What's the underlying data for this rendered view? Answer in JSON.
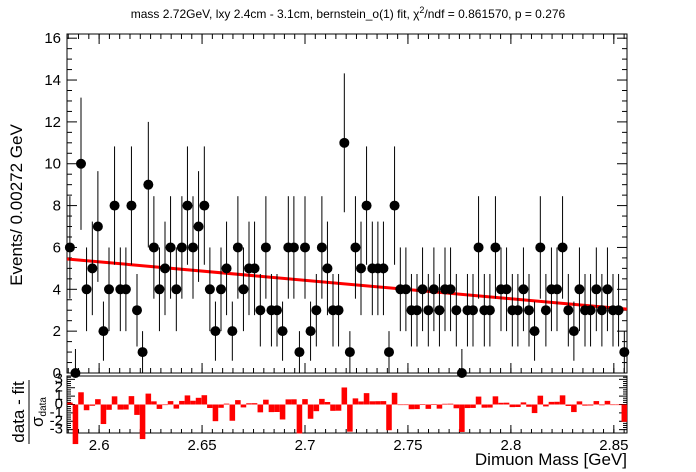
{
  "chart_data": [
    {
      "type": "scatter",
      "title": "mass 2.72GeV, lxy 2.4cm - 3.1cm, bernstein_o(1) fit, χ²/ndf = 0.861570, p = 0.276",
      "title_parts": {
        "pre": "mass 2.72GeV, lxy 2.4cm - 3.1cm, bernstein_o(1) fit, χ",
        "sup": "2",
        "post": "/ndf = 0.861570, p = 0.276"
      },
      "xlabel": "Dimuon Mass [GeV]",
      "ylabel": "Events/ 0.00272 GeV",
      "xlim": [
        2.5844,
        2.8564
      ],
      "ylim": [
        0,
        16.2
      ],
      "x_ticks": [
        "2.6",
        "2.65",
        "2.7",
        "2.75",
        "2.8",
        "2.85"
      ],
      "y_ticks": [
        "0",
        "2",
        "4",
        "6",
        "8",
        "10",
        "12",
        "14",
        "16"
      ],
      "grid": false,
      "series": [
        {
          "kind": "data",
          "marker_color": "#000000",
          "x": [
            2.5858,
            2.5885,
            2.5912,
            2.5939,
            2.5967,
            2.5994,
            2.6021,
            2.6048,
            2.6075,
            2.6103,
            2.613,
            2.6157,
            2.6184,
            2.6211,
            2.6239,
            2.6266,
            2.6293,
            2.632,
            2.6347,
            2.6375,
            2.6402,
            2.6429,
            2.6456,
            2.6483,
            2.6511,
            2.6538,
            2.6565,
            2.6592,
            2.6619,
            2.6647,
            2.6674,
            2.6701,
            2.6728,
            2.6755,
            2.6783,
            2.681,
            2.6837,
            2.6864,
            2.6891,
            2.6919,
            2.6946,
            2.6973,
            2.7,
            2.7027,
            2.7055,
            2.7082,
            2.7109,
            2.7136,
            2.7163,
            2.7191,
            2.7218,
            2.7245,
            2.7272,
            2.7299,
            2.7327,
            2.7354,
            2.7381,
            2.7408,
            2.7435,
            2.7463,
            2.749,
            2.7517,
            2.7544,
            2.7571,
            2.7599,
            2.7626,
            2.7653,
            2.768,
            2.7707,
            2.7735,
            2.7762,
            2.7789,
            2.7816,
            2.7843,
            2.7871,
            2.7898,
            2.7925,
            2.7952,
            2.7979,
            2.8007,
            2.8034,
            2.8061,
            2.8088,
            2.8115,
            2.8143,
            2.817,
            2.8197,
            2.8224,
            2.8251,
            2.8279,
            2.8306,
            2.8333,
            2.836,
            2.8387,
            2.8415,
            2.8442,
            2.8469,
            2.8496,
            2.8523,
            2.8551
          ],
          "y": [
            6,
            0,
            10,
            4,
            5,
            7,
            2,
            4,
            8,
            4,
            4,
            8,
            3,
            1,
            9,
            6,
            4,
            5,
            6,
            4,
            6,
            8,
            6,
            7,
            8,
            4,
            2,
            4,
            5,
            2,
            6,
            4,
            5,
            5,
            3,
            6,
            3,
            3,
            2,
            6,
            6,
            1,
            6,
            2,
            3,
            6,
            5,
            3,
            3,
            11,
            1,
            6,
            5,
            8,
            5,
            5,
            5,
            1,
            8,
            4,
            4,
            3,
            3,
            4,
            3,
            4,
            3,
            4,
            4,
            3,
            0,
            3,
            3,
            6,
            3,
            3,
            6,
            4,
            4,
            3,
            3,
            4,
            3,
            2,
            6,
            3,
            4,
            4,
            6,
            3,
            2,
            4,
            3,
            3,
            4,
            3,
            4,
            3,
            3,
            1
          ],
          "err": [
            2.449,
            1.147,
            3.162,
            2.0,
            2.236,
            2.646,
            1.414,
            2.0,
            2.828,
            2.0,
            2.0,
            2.828,
            1.732,
            1.0,
            3.0,
            2.449,
            2.0,
            2.236,
            2.449,
            2.0,
            2.449,
            2.828,
            2.449,
            2.646,
            2.828,
            2.0,
            1.414,
            2.0,
            2.236,
            1.414,
            2.449,
            2.0,
            2.236,
            2.236,
            1.732,
            2.449,
            1.732,
            1.732,
            1.414,
            2.449,
            2.449,
            1.0,
            2.449,
            1.414,
            1.732,
            2.449,
            2.236,
            1.732,
            1.732,
            3.317,
            1.0,
            2.449,
            2.236,
            2.828,
            2.236,
            2.236,
            2.236,
            1.0,
            2.828,
            2.0,
            2.0,
            1.732,
            1.732,
            2.0,
            1.732,
            2.0,
            1.732,
            2.0,
            2.0,
            1.732,
            1.147,
            1.732,
            1.732,
            2.449,
            1.732,
            1.732,
            2.449,
            2.0,
            2.0,
            1.732,
            1.732,
            2.0,
            1.732,
            1.414,
            2.449,
            1.732,
            2.0,
            2.0,
            2.449,
            1.732,
            1.414,
            2.0,
            1.732,
            1.732,
            2.0,
            1.732,
            2.0,
            1.732,
            1.732,
            1.0
          ]
        },
        {
          "kind": "fit",
          "line_color": "#ff0000",
          "x": [
            2.5844,
            2.8564
          ],
          "y": [
            5.45,
            3.05
          ]
        }
      ]
    },
    {
      "type": "bar",
      "ylabel_parts": {
        "top": "data - fit",
        "bottom": "σ",
        "sub": "data"
      },
      "ylim": [
        -3.4,
        3.4
      ],
      "y_ticks": [
        "3",
        "2",
        "1",
        "0",
        "-1",
        "-2",
        "-3"
      ],
      "bar_color": "#ff0000",
      "note": "pull = (data - fit) / σ_data per bin"
    }
  ]
}
